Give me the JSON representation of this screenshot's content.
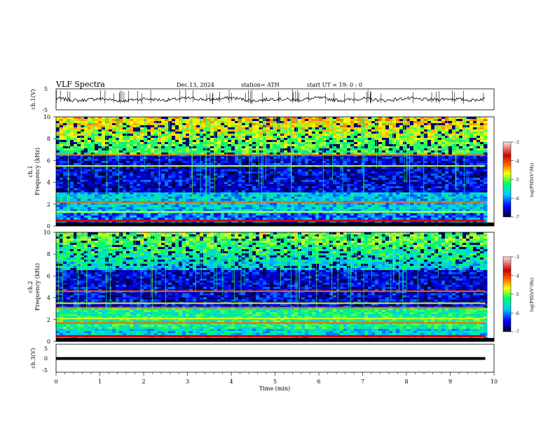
{
  "header": {
    "title": "VLF  Spectra",
    "date": "Dec.13, 2024",
    "station": "station= ATH",
    "start": "start  UT  =    19: 0   : 0"
  },
  "colorbar": {
    "label": "log(PSD)(V²/Hz)",
    "ticks": [
      "-3",
      "-4",
      "-5",
      "-6",
      "-7"
    ]
  },
  "chart_data": [
    {
      "type": "line",
      "title": "",
      "ylabel": "ch.1(V)",
      "ylim": [
        -5,
        5
      ],
      "yticks": [
        "5",
        "-5"
      ],
      "x": [
        0,
        0.5,
        1,
        1.5,
        2,
        2.5,
        3,
        3.5,
        4,
        4.5,
        5,
        5.5,
        6,
        6.5,
        7,
        7.5,
        8,
        8.5,
        9,
        9.5,
        9.8
      ],
      "values": [
        0.5,
        -0.6,
        0.4,
        -0.8,
        0.3,
        -0.4,
        0.6,
        -0.2,
        0.8,
        -0.7,
        0.3,
        -0.3,
        0.7,
        -0.5,
        0.4,
        -0.6,
        0.5,
        -0.2,
        0.3,
        -0.4,
        0.3
      ],
      "xlim": [
        0,
        10
      ]
    },
    {
      "type": "heatmap",
      "title": "",
      "ylabel": "ch.1 Frequency (kHz)",
      "ylim": [
        0,
        10
      ],
      "yticks": [
        "10",
        "8",
        "6",
        "4",
        "2",
        "0"
      ],
      "xlim": [
        0,
        10
      ],
      "data_end_min": 9.8,
      "colorscale": [
        "#000022",
        "#0000ff",
        "#00c8ff",
        "#00ff66",
        "#ffff00",
        "#ff6600",
        "#cc0000",
        "#ffe0e0"
      ],
      "color_range": [
        -7,
        -3
      ]
    },
    {
      "type": "heatmap",
      "title": "",
      "ylabel": "ch.2 Frequency (kHz)",
      "ylim": [
        0,
        10
      ],
      "yticks": [
        "10",
        "8",
        "6",
        "4",
        "2",
        "0"
      ],
      "xlim": [
        0,
        10
      ],
      "data_end_min": 9.8,
      "colorscale": [
        "#000022",
        "#0000ff",
        "#00c8ff",
        "#00ff66",
        "#ffff00",
        "#ff6600",
        "#cc0000",
        "#ffe0e0"
      ],
      "color_range": [
        -7,
        -3
      ]
    },
    {
      "type": "line",
      "title": "",
      "ylabel": "ch.3(V)",
      "ylim": [
        -5,
        5
      ],
      "yticks": [
        "5",
        "0",
        "-5"
      ],
      "x": [
        0,
        9.8
      ],
      "values": [
        -0.1,
        -0.1
      ],
      "xlim": [
        0,
        10
      ],
      "xlabel": "Time  (min)",
      "xticks": [
        "0",
        "1",
        "2",
        "3",
        "4",
        "5",
        "6",
        "7",
        "8",
        "9",
        "10"
      ]
    }
  ]
}
